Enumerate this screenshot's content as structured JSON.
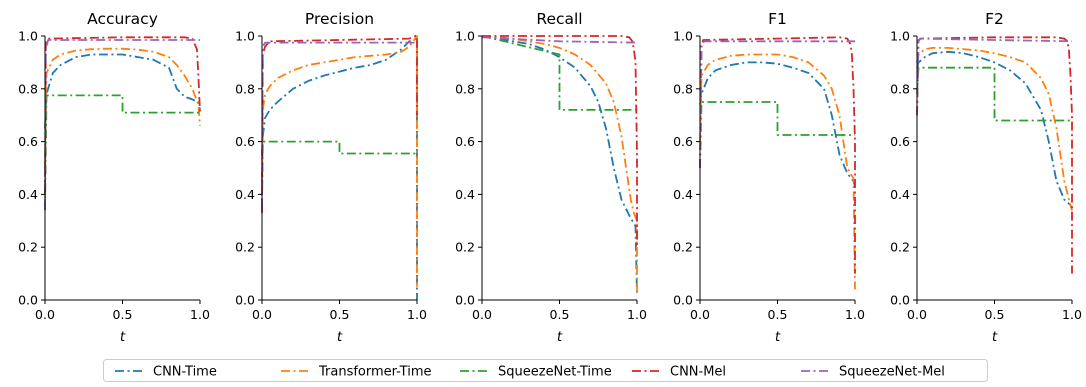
{
  "chart_data": {
    "type": "line",
    "xlabel": "t",
    "xlim": [
      0,
      1
    ],
    "ylim": [
      0,
      1
    ],
    "xticks": [
      "0.0",
      "0.5",
      "1.0"
    ],
    "yticks": [
      "0.0",
      "0.2",
      "0.4",
      "0.6",
      "0.8",
      "1.0"
    ],
    "grid": false,
    "legend_position": "bottom-center",
    "legend": [
      {
        "name": "CNN-Time",
        "color": "#1f77b4"
      },
      {
        "name": "Transformer-Time",
        "color": "#ff7f0e"
      },
      {
        "name": "SqueezeNet-Time",
        "color": "#2ca02c"
      },
      {
        "name": "CNN-Mel",
        "color": "#d62728"
      },
      {
        "name": "SqueezeNet-Mel",
        "color": "#9467bd"
      }
    ],
    "panels": [
      {
        "title": "Accuracy",
        "series": [
          {
            "name": "CNN-Time",
            "x": [
              0,
              0.01,
              0.05,
              0.1,
              0.2,
              0.3,
              0.4,
              0.5,
              0.6,
              0.7,
              0.8,
              0.85,
              0.9,
              0.95,
              0.99,
              1.0
            ],
            "y": [
              0.65,
              0.78,
              0.86,
              0.89,
              0.92,
              0.93,
              0.93,
              0.93,
              0.92,
              0.91,
              0.88,
              0.8,
              0.77,
              0.76,
              0.75,
              0.72
            ]
          },
          {
            "name": "Transformer-Time",
            "x": [
              0,
              0.01,
              0.05,
              0.1,
              0.2,
              0.3,
              0.4,
              0.5,
              0.6,
              0.7,
              0.8,
              0.85,
              0.9,
              0.95,
              0.99,
              1.0
            ],
            "y": [
              0.5,
              0.86,
              0.91,
              0.93,
              0.945,
              0.95,
              0.952,
              0.952,
              0.948,
              0.94,
              0.92,
              0.89,
              0.85,
              0.8,
              0.74,
              0.66
            ]
          },
          {
            "name": "SqueezeNet-Time",
            "x": [
              0,
              0.01,
              0.5,
              0.5,
              1.0
            ],
            "y": [
              0.34,
              0.775,
              0.775,
              0.71,
              0.71
            ]
          },
          {
            "name": "CNN-Mel",
            "x": [
              0,
              0.005,
              0.02,
              0.5,
              0.9,
              0.95,
              0.98,
              0.99,
              1.0
            ],
            "y": [
              0.4,
              0.97,
              0.99,
              0.995,
              0.995,
              0.99,
              0.95,
              0.85,
              0.71
            ]
          },
          {
            "name": "SqueezeNet-Mel",
            "x": [
              0,
              0.005,
              0.02,
              0.5,
              1.0
            ],
            "y": [
              0.35,
              0.95,
              0.985,
              0.985,
              0.985
            ]
          }
        ]
      },
      {
        "title": "Precision",
        "series": [
          {
            "name": "CNN-Time",
            "x": [
              0,
              0.005,
              0.02,
              0.05,
              0.1,
              0.2,
              0.3,
              0.4,
              0.5,
              0.6,
              0.7,
              0.8,
              0.9,
              0.95,
              1.0,
              1.0
            ],
            "y": [
              0.55,
              0.62,
              0.69,
              0.72,
              0.75,
              0.8,
              0.83,
              0.85,
              0.865,
              0.88,
              0.89,
              0.91,
              0.95,
              0.98,
              0.99,
              0.0
            ]
          },
          {
            "name": "Transformer-Time",
            "x": [
              0,
              0.005,
              0.02,
              0.05,
              0.1,
              0.2,
              0.3,
              0.4,
              0.5,
              0.6,
              0.7,
              0.8,
              0.9,
              0.95,
              1.0,
              1.0
            ],
            "y": [
              0.45,
              0.72,
              0.78,
              0.81,
              0.84,
              0.87,
              0.89,
              0.9,
              0.91,
              0.92,
              0.925,
              0.93,
              0.94,
              0.96,
              1.0,
              0.05
            ]
          },
          {
            "name": "SqueezeNet-Time",
            "x": [
              0,
              0.005,
              0.5,
              0.5,
              1.0
            ],
            "y": [
              0.35,
              0.6,
              0.6,
              0.555,
              0.555
            ]
          },
          {
            "name": "CNN-Mel",
            "x": [
              0,
              0.005,
              0.02,
              0.05,
              0.5,
              0.95,
              0.99,
              1.0,
              1.0
            ],
            "y": [
              0.33,
              0.93,
              0.96,
              0.98,
              0.985,
              0.99,
              1.0,
              1.0,
              0.7
            ]
          },
          {
            "name": "SqueezeNet-Mel",
            "x": [
              0,
              0.005,
              0.02,
              0.5,
              1.0
            ],
            "y": [
              0.35,
              0.96,
              0.975,
              0.975,
              0.975
            ]
          }
        ]
      },
      {
        "title": "Recall",
        "series": [
          {
            "name": "CNN-Time",
            "x": [
              0,
              0.1,
              0.2,
              0.3,
              0.4,
              0.5,
              0.6,
              0.7,
              0.75,
              0.8,
              0.85,
              0.9,
              0.95,
              0.97,
              0.99,
              1.0
            ],
            "y": [
              1.0,
              0.99,
              0.98,
              0.97,
              0.95,
              0.92,
              0.88,
              0.81,
              0.75,
              0.65,
              0.5,
              0.38,
              0.32,
              0.3,
              0.28,
              0.02
            ]
          },
          {
            "name": "Transformer-Time",
            "x": [
              0,
              0.1,
              0.2,
              0.3,
              0.4,
              0.5,
              0.6,
              0.7,
              0.8,
              0.85,
              0.9,
              0.93,
              0.96,
              0.98,
              1.0,
              1.0
            ],
            "y": [
              1.0,
              0.995,
              0.99,
              0.98,
              0.97,
              0.955,
              0.93,
              0.89,
              0.82,
              0.75,
              0.62,
              0.5,
              0.38,
              0.33,
              0.3,
              0.03
            ]
          },
          {
            "name": "SqueezeNet-Time",
            "x": [
              0,
              0.5,
              0.5,
              1.0
            ],
            "y": [
              1.0,
              0.93,
              0.72,
              0.72
            ]
          },
          {
            "name": "CNN-Mel",
            "x": [
              0,
              0.9,
              0.95,
              0.97,
              0.98,
              0.99,
              1.0,
              1.0
            ],
            "y": [
              1.0,
              1.0,
              0.995,
              0.98,
              0.95,
              0.9,
              0.55,
              0.2
            ]
          },
          {
            "name": "SqueezeNet-Mel",
            "x": [
              0,
              0.5,
              1.0
            ],
            "y": [
              0.995,
              0.98,
              0.975
            ]
          }
        ]
      },
      {
        "title": "F1",
        "series": [
          {
            "name": "CNN-Time",
            "x": [
              0,
              0.01,
              0.05,
              0.1,
              0.2,
              0.3,
              0.4,
              0.5,
              0.6,
              0.7,
              0.8,
              0.85,
              0.9,
              0.95,
              0.99,
              1.0
            ],
            "y": [
              0.74,
              0.78,
              0.84,
              0.87,
              0.89,
              0.9,
              0.9,
              0.895,
              0.88,
              0.86,
              0.8,
              0.7,
              0.55,
              0.48,
              0.45,
              0.43
            ]
          },
          {
            "name": "Transformer-Time",
            "x": [
              0,
              0.01,
              0.05,
              0.1,
              0.2,
              0.3,
              0.4,
              0.5,
              0.6,
              0.7,
              0.8,
              0.85,
              0.9,
              0.95,
              0.99,
              1.0
            ],
            "y": [
              0.6,
              0.85,
              0.89,
              0.91,
              0.925,
              0.93,
              0.93,
              0.93,
              0.92,
              0.9,
              0.85,
              0.8,
              0.7,
              0.5,
              0.46,
              0.04
            ]
          },
          {
            "name": "SqueezeNet-Time",
            "x": [
              0,
              0.01,
              0.5,
              0.5,
              1.0
            ],
            "y": [
              0.5,
              0.75,
              0.75,
              0.625,
              0.625
            ]
          },
          {
            "name": "CNN-Mel",
            "x": [
              0,
              0.01,
              0.02,
              0.5,
              0.9,
              0.95,
              0.97,
              0.98,
              0.99,
              1.0,
              1.0
            ],
            "y": [
              0.5,
              0.96,
              0.985,
              0.99,
              0.995,
              0.99,
              0.97,
              0.93,
              0.8,
              0.6,
              0.1
            ]
          },
          {
            "name": "SqueezeNet-Mel",
            "x": [
              0,
              0.01,
              0.03,
              0.5,
              1.0
            ],
            "y": [
              0.5,
              0.97,
              0.98,
              0.98,
              0.98
            ]
          }
        ]
      },
      {
        "title": "F2",
        "series": [
          {
            "name": "CNN-Time",
            "x": [
              0,
              0.01,
              0.05,
              0.1,
              0.2,
              0.3,
              0.4,
              0.5,
              0.6,
              0.7,
              0.8,
              0.85,
              0.9,
              0.95,
              0.99,
              1.0
            ],
            "y": [
              0.88,
              0.9,
              0.92,
              0.935,
              0.94,
              0.935,
              0.92,
              0.9,
              0.87,
              0.82,
              0.72,
              0.6,
              0.45,
              0.38,
              0.36,
              0.34
            ]
          },
          {
            "name": "Transformer-Time",
            "x": [
              0,
              0.01,
              0.05,
              0.1,
              0.2,
              0.3,
              0.4,
              0.5,
              0.6,
              0.7,
              0.8,
              0.85,
              0.9,
              0.95,
              0.99,
              1.0
            ],
            "y": [
              0.9,
              0.93,
              0.95,
              0.955,
              0.955,
              0.95,
              0.945,
              0.935,
              0.92,
              0.9,
              0.84,
              0.78,
              0.65,
              0.45,
              0.36,
              0.34
            ]
          },
          {
            "name": "SqueezeNet-Time",
            "x": [
              0,
              0.01,
              0.5,
              0.5,
              1.0
            ],
            "y": [
              0.78,
              0.88,
              0.88,
              0.68,
              0.68
            ]
          },
          {
            "name": "CNN-Mel",
            "x": [
              0,
              0.01,
              0.02,
              0.5,
              0.9,
              0.95,
              0.97,
              0.98,
              0.99,
              1.0,
              1.0
            ],
            "y": [
              0.7,
              0.98,
              0.99,
              0.995,
              0.995,
              0.99,
              0.98,
              0.95,
              0.85,
              0.7,
              0.1
            ]
          },
          {
            "name": "SqueezeNet-Mel",
            "x": [
              0,
              0.01,
              0.03,
              0.5,
              1.0
            ],
            "y": [
              0.7,
              0.985,
              0.99,
              0.985,
              0.98
            ]
          }
        ]
      }
    ]
  }
}
